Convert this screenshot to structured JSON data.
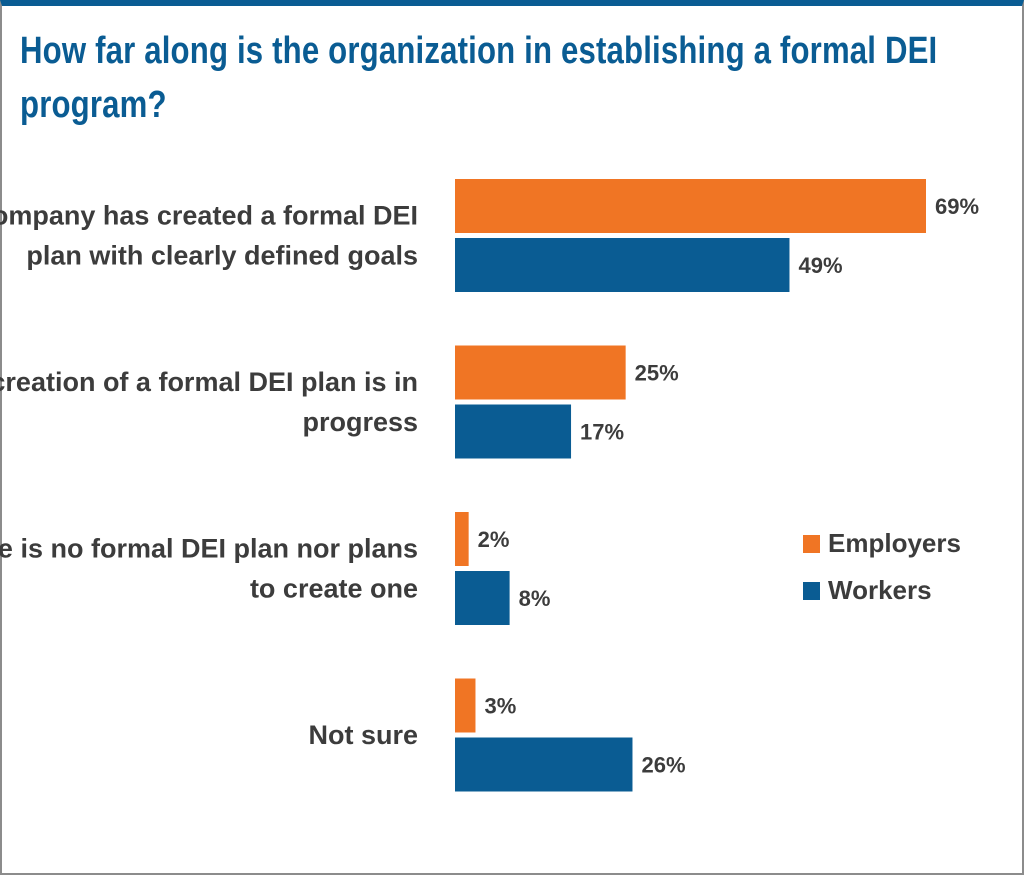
{
  "title": "How far along is the organization in establishing a formal DEI program?",
  "colors": {
    "employers": "#f07524",
    "workers": "#0a5c93",
    "title": "#0a5c93",
    "text": "#3c3c3c"
  },
  "chart_data": {
    "type": "bar",
    "orientation": "horizontal",
    "title": "How far along is the organization in establishing a formal DEI program?",
    "categories": [
      [
        "The company has created a formal DEI",
        "plan with clearly defined goals"
      ],
      [
        "The creation of a formal DEI plan is in",
        "progress"
      ],
      [
        "There is no formal DEI plan nor plans",
        "to create one"
      ],
      [
        "Not sure"
      ]
    ],
    "series": [
      {
        "name": "Employers",
        "color": "#f07524",
        "values": [
          69,
          25,
          2,
          3
        ],
        "labels": [
          "69%",
          "25%",
          "2%",
          "3%"
        ]
      },
      {
        "name": "Workers",
        "color": "#0a5c93",
        "values": [
          49,
          17,
          8,
          26
        ],
        "labels": [
          "49%",
          "17%",
          "8%",
          "26%"
        ]
      }
    ],
    "value_unit": "%",
    "xlim": [
      0,
      69
    ],
    "grid": false,
    "legend": {
      "placement": "right",
      "entries": [
        "Employers",
        "Workers"
      ]
    }
  }
}
